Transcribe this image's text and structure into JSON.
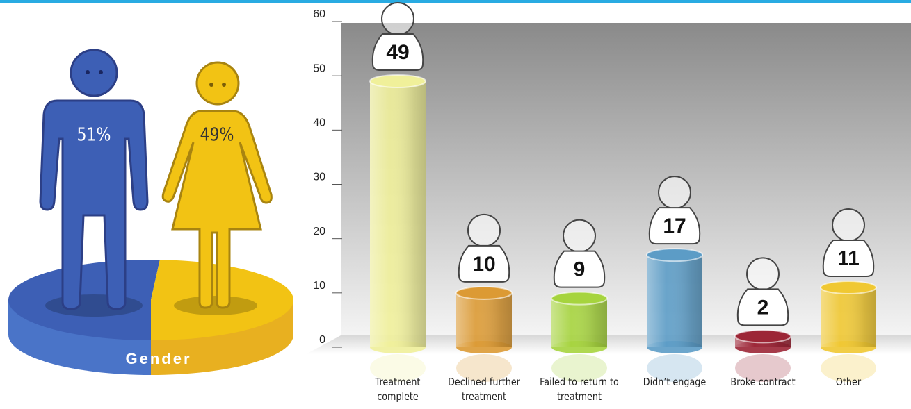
{
  "chart_data": [
    {
      "type": "pie",
      "title": "Gender",
      "values": [
        51,
        49
      ],
      "value_labels": [
        "51%",
        "49%"
      ],
      "colors": [
        "#3d5fb5",
        "#f2c314"
      ]
    },
    {
      "type": "bar",
      "categories": [
        "Treatment complete",
        "Declined further treatment",
        "Failed to return to treatment",
        "Didn’t engage",
        "Broke contract",
        "Other"
      ],
      "values": [
        49,
        10,
        9,
        17,
        2,
        11
      ],
      "colors": [
        "#f0f09a",
        "#dc9a34",
        "#a6d43e",
        "#5c9cc6",
        "#9c2636",
        "#f0c832"
      ],
      "ylim": [
        0,
        60
      ],
      "yticks": [
        0,
        10,
        20,
        30,
        40,
        50,
        60
      ]
    }
  ]
}
